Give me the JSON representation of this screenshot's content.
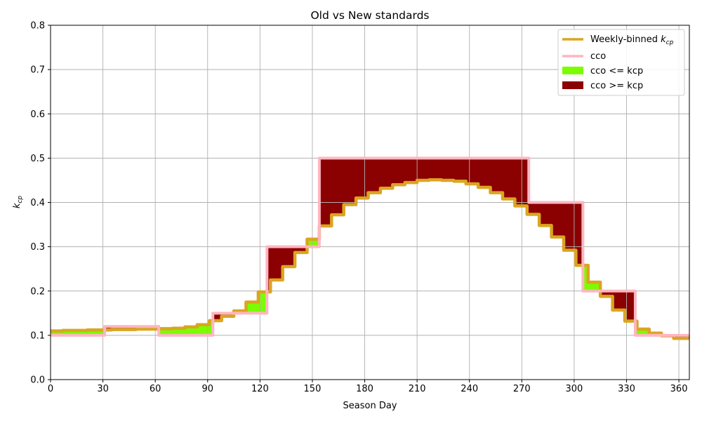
{
  "chart_data": {
    "type": "line",
    "title": "Old vs New standards",
    "xlabel": "Season Day",
    "ylabel": "k_cp",
    "xlim": [
      0,
      366
    ],
    "ylim": [
      0,
      0.8
    ],
    "xticks": [
      0,
      30,
      60,
      90,
      120,
      150,
      180,
      210,
      240,
      270,
      300,
      330,
      360
    ],
    "yticks": [
      0.0,
      0.1,
      0.2,
      0.3,
      0.4,
      0.5,
      0.6,
      0.7,
      0.8
    ],
    "grid": true,
    "legend_position": "top-right",
    "series": [
      {
        "name": "Weekly-binned k_cp",
        "legend_label": "Weekly-binned ",
        "legend_math": "k",
        "legend_sub": "cp",
        "color": "#DAA520",
        "step": "post",
        "x": [
          0,
          7,
          14,
          21,
          28,
          35,
          42,
          49,
          56,
          63,
          70,
          77,
          84,
          91,
          98,
          105,
          112,
          119,
          126,
          133,
          140,
          147,
          154,
          161,
          168,
          175,
          182,
          189,
          196,
          203,
          210,
          217,
          224,
          231,
          238,
          245,
          252,
          259,
          266,
          273,
          280,
          287,
          294,
          301,
          308,
          315,
          322,
          329,
          336,
          343,
          350,
          357,
          366
        ],
        "y": [
          0.11,
          0.111,
          0.111,
          0.112,
          0.112,
          0.113,
          0.113,
          0.114,
          0.114,
          0.115,
          0.116,
          0.119,
          0.124,
          0.133,
          0.143,
          0.155,
          0.175,
          0.198,
          0.225,
          0.255,
          0.287,
          0.317,
          0.347,
          0.372,
          0.395,
          0.41,
          0.422,
          0.432,
          0.44,
          0.445,
          0.45,
          0.451,
          0.45,
          0.448,
          0.442,
          0.434,
          0.422,
          0.408,
          0.392,
          0.373,
          0.348,
          0.322,
          0.292,
          0.258,
          0.22,
          0.188,
          0.157,
          0.132,
          0.114,
          0.105,
          0.099,
          0.093,
          0.093
        ]
      },
      {
        "name": "cco",
        "legend_label": "cco",
        "color": "#FFB6C1",
        "step": "post",
        "x": [
          0,
          31,
          62,
          93,
          124,
          154,
          274,
          305,
          335,
          366
        ],
        "y": [
          0.1,
          0.12,
          0.1,
          0.15,
          0.3,
          0.5,
          0.4,
          0.2,
          0.1,
          0.1
        ]
      }
    ],
    "fills": [
      {
        "name": "cco <= kcp",
        "label": "cco <= kcp",
        "color": "#7CFC00"
      },
      {
        "name": "cco >= kcp",
        "label": "cco >= kcp",
        "color": "#8B0000"
      }
    ]
  }
}
